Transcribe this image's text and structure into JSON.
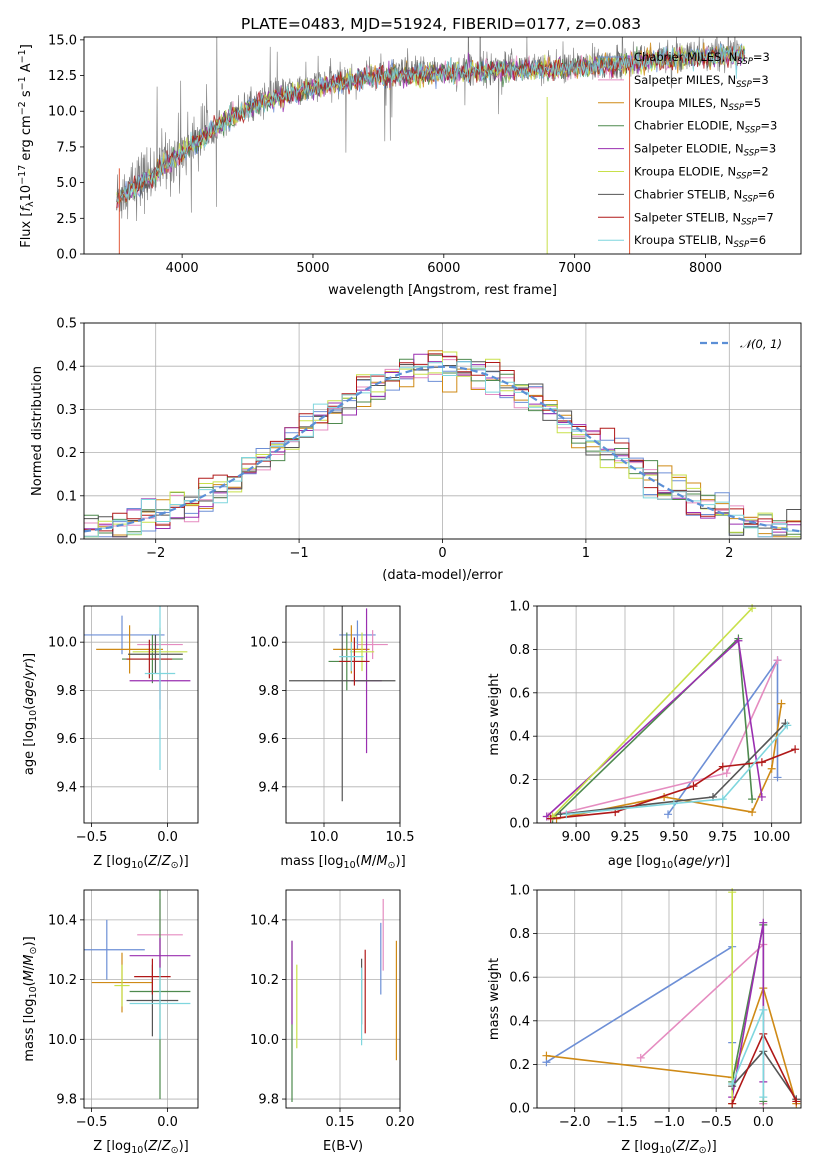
{
  "figure": {
    "title": "PLATE=0483, MJD=51924, FIBERID=0177, z=0.083"
  },
  "models": [
    {
      "label": "Chabrier MILES, N",
      "sub": "SSP",
      "suffix": "=3",
      "color": "#6d8fd6",
      "width": 0.9
    },
    {
      "label": "Salpeter MILES, N",
      "sub": "SSP",
      "suffix": "=3",
      "color": "#e58cc0",
      "width": 0.9
    },
    {
      "label": "Kroupa MILES, N",
      "sub": "SSP",
      "suffix": "=5",
      "color": "#cf8a16",
      "width": 0.9
    },
    {
      "label": "Chabrier ELODIE, N",
      "sub": "SSP",
      "suffix": "=3",
      "color": "#4e8a4e",
      "width": 0.9
    },
    {
      "label": "Salpeter ELODIE, N",
      "sub": "SSP",
      "suffix": "=3",
      "color": "#9a2fb0",
      "width": 0.9
    },
    {
      "label": "Kroupa ELODIE, N",
      "sub": "SSP",
      "suffix": "=2",
      "color": "#c8e04a",
      "width": 0.9
    },
    {
      "label": "Chabrier STELIB, N",
      "sub": "SSP",
      "suffix": "=6",
      "color": "#555555",
      "width": 0.9
    },
    {
      "label": "Salpeter STELIB, N",
      "sub": "SSP",
      "suffix": "=7",
      "color": "#b01818",
      "width": 0.9
    },
    {
      "label": "Kroupa STELIB, N",
      "sub": "SSP",
      "suffix": "=6",
      "color": "#7fd6de",
      "width": 0.9
    }
  ],
  "chart_data": [
    {
      "id": "spectrum",
      "type": "line",
      "xlabel": "wavelength [Angstrom, rest frame]",
      "ylabel": "Flux [f_λ10^-17 erg cm^-2 s^-1 A^-1]",
      "xlim": [
        3250,
        8730
      ],
      "ylim": [
        0,
        15.2
      ],
      "xticks": [
        4000,
        5000,
        6000,
        7000,
        8000
      ],
      "yticks": [
        0.0,
        2.5,
        5.0,
        7.5,
        10.0,
        12.5,
        15.0
      ],
      "grid": false,
      "legend": "right, inside",
      "x_start": 3500,
      "x_end": 8300,
      "continuum_x": [
        3500,
        3700,
        3900,
        4100,
        4300,
        4600,
        5000,
        5400,
        6000,
        6500,
        7000,
        7500,
        8000,
        8300
      ],
      "continuum_y": [
        4.0,
        5.2,
        6.6,
        8.0,
        9.4,
        10.8,
        11.8,
        12.5,
        12.9,
        13.1,
        13.2,
        13.6,
        14.0,
        14.2
      ]
    },
    {
      "id": "residuals",
      "type": "histogram",
      "xlabel": "(data-model)/error",
      "ylabel": "Normed distribution",
      "xlim": [
        -2.5,
        2.5
      ],
      "ylim": [
        0,
        0.5
      ],
      "xticks": [
        -2,
        -1,
        0,
        1,
        2
      ],
      "yticks": [
        0.0,
        0.1,
        0.2,
        0.3,
        0.4,
        0.5
      ],
      "grid": true,
      "legend": "top-right",
      "reference_label": "N(0,1)",
      "reference_color": "#5b8fd6",
      "bin_width": 0.1
    },
    {
      "id": "age-vs-Z",
      "type": "scatter",
      "xlabel": "Z [log10(Z/Z⊙)]",
      "ylabel": "age [log10(age/yr)]",
      "xlim": [
        -0.55,
        0.2
      ],
      "ylim": [
        9.25,
        10.15
      ],
      "xticks": [
        -0.5,
        0.0
      ],
      "yticks": [
        9.4,
        9.6,
        9.8,
        10.0
      ],
      "grid": true,
      "points": [
        {
          "x": -0.3,
          "y": 10.03,
          "xerr": 0.28,
          "yerr": 0.08
        },
        {
          "x": -0.05,
          "y": 9.99,
          "xerr": 0.15,
          "yerr": 0.06
        },
        {
          "x": -0.25,
          "y": 9.97,
          "xerr": 0.22,
          "yerr": 0.1
        },
        {
          "x": -0.1,
          "y": 9.93,
          "xerr": 0.2,
          "yerr": 0.1
        },
        {
          "x": -0.05,
          "y": 9.84,
          "xerr": 0.2,
          "yerr": 0.12
        },
        {
          "x": -0.05,
          "y": 9.96,
          "xerr": 0.18,
          "yerr": 0.1
        },
        {
          "x": -0.08,
          "y": 9.95,
          "xerr": 0.18,
          "yerr": 0.08
        },
        {
          "x": -0.12,
          "y": 9.93,
          "xerr": 0.15,
          "yerr": 0.08
        },
        {
          "x": -0.05,
          "y": 9.87,
          "xerr": 0.1,
          "yerr": 0.4
        }
      ]
    },
    {
      "id": "age-vs-mass",
      "type": "scatter",
      "xlabel": "mass [log10(M/M⊙)]",
      "ylabel": "",
      "xlim": [
        9.75,
        10.5
      ],
      "ylim": [
        9.25,
        10.15
      ],
      "xticks": [
        10.0,
        10.5
      ],
      "yticks": [
        9.4,
        9.6,
        9.8,
        10.0
      ],
      "grid": true,
      "points": [
        {
          "x": 10.22,
          "y": 10.03,
          "xerr": 0.12,
          "yerr": 0.06
        },
        {
          "x": 10.32,
          "y": 9.99,
          "xerr": 0.1,
          "yerr": 0.06
        },
        {
          "x": 10.18,
          "y": 9.97,
          "xerr": 0.12,
          "yerr": 0.1
        },
        {
          "x": 10.15,
          "y": 9.92,
          "xerr": 0.12,
          "yerr": 0.12
        },
        {
          "x": 10.28,
          "y": 9.84,
          "xerr": 0.1,
          "yerr": 0.3
        },
        {
          "x": 10.25,
          "y": 9.96,
          "xerr": 0.08,
          "yerr": 0.08
        },
        {
          "x": 10.12,
          "y": 9.84,
          "xerr": 0.35,
          "yerr": 0.5
        },
        {
          "x": 10.2,
          "y": 9.92,
          "xerr": 0.1,
          "yerr": 0.1
        },
        {
          "x": 10.18,
          "y": 9.94,
          "xerr": 0.08,
          "yerr": 0.06
        }
      ]
    },
    {
      "id": "massweight-vs-age",
      "type": "line",
      "xlabel": "age [log10(age/yr)]",
      "ylabel": "mass weight",
      "xlim": [
        8.8,
        10.15
      ],
      "ylim": [
        0.0,
        1.0
      ],
      "xticks": [
        9.0,
        9.25,
        9.5,
        9.75,
        10.0
      ],
      "yticks": [
        0.0,
        0.2,
        0.4,
        0.6,
        0.8,
        1.0
      ],
      "grid": true,
      "series": [
        {
          "x": [
            9.47,
            10.03,
            10.03
          ],
          "y": [
            0.04,
            0.75,
            0.21
          ]
        },
        {
          "x": [
            8.86,
            9.77,
            10.03
          ],
          "y": [
            0.03,
            0.23,
            0.75
          ]
        },
        {
          "x": [
            8.9,
            9.45,
            9.9,
            10.0,
            10.05
          ],
          "y": [
            0.02,
            0.12,
            0.05,
            0.25,
            0.55
          ]
        },
        {
          "x": [
            8.88,
            9.83,
            9.9
          ],
          "y": [
            0.02,
            0.85,
            0.11
          ]
        },
        {
          "x": [
            8.85,
            9.83,
            9.95
          ],
          "y": [
            0.03,
            0.84,
            0.12
          ]
        },
        {
          "x": [
            8.88,
            9.9
          ],
          "y": [
            0.03,
            0.99
          ]
        },
        {
          "x": [
            8.92,
            9.7,
            10.07
          ],
          "y": [
            0.04,
            0.12,
            0.46
          ]
        },
        {
          "x": [
            8.87,
            9.2,
            9.6,
            9.75,
            9.95,
            10.12
          ],
          "y": [
            0.02,
            0.05,
            0.17,
            0.26,
            0.28,
            0.34
          ]
        },
        {
          "x": [
            8.95,
            9.5,
            9.75,
            10.08
          ],
          "y": [
            0.04,
            0.09,
            0.11,
            0.45
          ]
        }
      ]
    },
    {
      "id": "mass-vs-Z",
      "type": "scatter",
      "xlabel": "Z [log10(Z/Z⊙)]",
      "ylabel": "mass [log10(M/M⊙)]",
      "xlim": [
        -0.55,
        0.2
      ],
      "ylim": [
        9.77,
        10.5
      ],
      "xticks": [
        -0.5,
        0.0
      ],
      "yticks": [
        9.8,
        10.0,
        10.2,
        10.4
      ],
      "grid": true,
      "points": [
        {
          "x": -0.4,
          "y": 10.3,
          "xerr": 0.25,
          "yerr": 0.1
        },
        {
          "x": -0.05,
          "y": 10.35,
          "xerr": 0.15,
          "yerr": 0.12
        },
        {
          "x": -0.3,
          "y": 10.19,
          "xerr": 0.2,
          "yerr": 0.1
        },
        {
          "x": -0.05,
          "y": 10.16,
          "xerr": 0.2,
          "yerr": 0.36
        },
        {
          "x": -0.05,
          "y": 10.28,
          "xerr": 0.2,
          "yerr": 0.06
        },
        {
          "x": -0.3,
          "y": 10.18,
          "xerr": 0.05,
          "yerr": 0.07
        },
        {
          "x": -0.1,
          "y": 10.13,
          "xerr": 0.17,
          "yerr": 0.12
        },
        {
          "x": -0.1,
          "y": 10.21,
          "xerr": 0.12,
          "yerr": 0.06
        },
        {
          "x": -0.05,
          "y": 10.12,
          "xerr": 0.2,
          "yerr": 0.12
        }
      ]
    },
    {
      "id": "mass-vs-EBV",
      "type": "scatter",
      "xlabel": "E(B-V)",
      "ylabel": "",
      "xlim": [
        0.105,
        0.2
      ],
      "ylim": [
        9.77,
        10.5
      ],
      "xticks": [
        0.15,
        0.2
      ],
      "yticks": [
        9.8,
        10.0,
        10.2,
        10.4
      ],
      "grid": true,
      "points": [
        {
          "x": 0.184,
          "y": 10.27,
          "xerr": 0,
          "yerr": 0.12
        },
        {
          "x": 0.186,
          "y": 10.35,
          "xerr": 0,
          "yerr": 0.12
        },
        {
          "x": 0.197,
          "y": 10.13,
          "xerr": 0,
          "yerr": 0.2
        },
        {
          "x": 0.11,
          "y": 10.06,
          "xerr": 0,
          "yerr": 0.27
        },
        {
          "x": 0.11,
          "y": 10.19,
          "xerr": 0,
          "yerr": 0.14
        },
        {
          "x": 0.114,
          "y": 10.11,
          "xerr": 0,
          "yerr": 0.14
        },
        {
          "x": 0.168,
          "y": 10.16,
          "xerr": 0,
          "yerr": 0.11
        },
        {
          "x": 0.171,
          "y": 10.16,
          "xerr": 0,
          "yerr": 0.14
        },
        {
          "x": 0.168,
          "y": 10.11,
          "xerr": 0,
          "yerr": 0.13
        }
      ]
    },
    {
      "id": "massweight-vs-Z",
      "type": "line",
      "xlabel": "Z [log10(Z/Z⊙)]",
      "ylabel": "mass weight",
      "xlim": [
        -2.4,
        0.4
      ],
      "ylim": [
        0.0,
        1.0
      ],
      "xticks": [
        -2.0,
        -1.5,
        -1.0,
        -0.5,
        0.0
      ],
      "yticks": [
        0.0,
        0.2,
        0.4,
        0.6,
        0.8,
        1.0
      ],
      "grid": true,
      "series": [
        {
          "x": [
            -2.3,
            -0.33,
            -0.33
          ],
          "y": [
            0.21,
            0.74,
            0.3
          ]
        },
        {
          "x": [
            -1.3,
            0.0,
            0.0
          ],
          "y": [
            0.23,
            0.75,
            0.02
          ]
        },
        {
          "x": [
            -2.3,
            -0.33,
            0.0,
            0.35
          ],
          "y": [
            0.24,
            0.14,
            0.55,
            0.02
          ]
        },
        {
          "x": [
            -0.33,
            0.0,
            0.0
          ],
          "y": [
            0.12,
            0.84,
            0.03
          ]
        },
        {
          "x": [
            -0.33,
            0.0,
            0.0
          ],
          "y": [
            0.05,
            0.85,
            0.12
          ]
        },
        {
          "x": [
            -0.33,
            -0.33
          ],
          "y": [
            0.99,
            0.02
          ]
        },
        {
          "x": [
            -0.33,
            0.0,
            0.35
          ],
          "y": [
            0.1,
            0.26,
            0.04
          ]
        },
        {
          "x": [
            -0.33,
            0.0,
            0.35
          ],
          "y": [
            0.02,
            0.34,
            0.03
          ]
        },
        {
          "x": [
            -0.33,
            0.0,
            0.0
          ],
          "y": [
            0.11,
            0.45,
            0.05
          ]
        }
      ]
    }
  ]
}
